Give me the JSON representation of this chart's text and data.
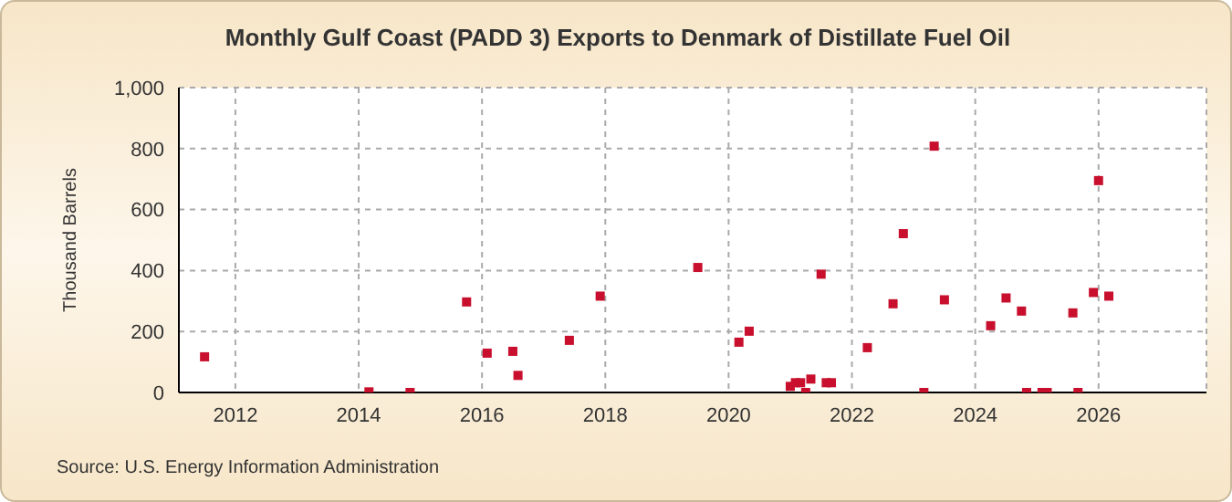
{
  "chart_data": {
    "type": "scatter",
    "title": "Monthly Gulf Coast (PADD 3) Exports to Denmark of Distillate Fuel Oil",
    "ylabel": "Thousand Barrels",
    "x": [
      "2011-07",
      "2014-03",
      "2014-11",
      "2015-10",
      "2016-02",
      "2016-07",
      "2016-08",
      "2017-06",
      "2017-12",
      "2019-07",
      "2020-03",
      "2020-05",
      "2021-01",
      "2021-02",
      "2021-03",
      "2021-04",
      "2021-05",
      "2021-07",
      "2021-08",
      "2021-09",
      "2022-04",
      "2022-09",
      "2022-11",
      "2023-03",
      "2023-05",
      "2023-07",
      "2024-04",
      "2024-07",
      "2024-10",
      "2024-11",
      "2025-02",
      "2025-03",
      "2025-08",
      "2025-09",
      "2025-12",
      "2026-01",
      "2026-03"
    ],
    "series": [
      {
        "color": "#c8102e",
        "values": [
          117,
          2,
          0,
          297,
          129,
          135,
          56,
          171,
          316,
          410,
          165,
          201,
          20,
          32,
          32,
          0,
          44,
          388,
          32,
          32,
          147,
          291,
          521,
          0,
          808,
          304,
          219,
          310,
          267,
          0,
          0,
          0,
          261,
          0,
          328,
          695,
          316
        ]
      }
    ],
    "xlim": [
      "2011-02",
      "2027-10"
    ],
    "xticks": [
      "2012",
      "2014",
      "2016",
      "2018",
      "2020",
      "2022",
      "2024",
      "2026"
    ],
    "ylim": [
      0,
      1000
    ],
    "yticks": [
      0,
      200,
      400,
      600,
      800,
      {
        "value": 1000,
        "label": "1,000"
      }
    ],
    "grid": true,
    "marker": "square",
    "annotations": [
      "Source: U.S. Energy Information Administration"
    ]
  }
}
